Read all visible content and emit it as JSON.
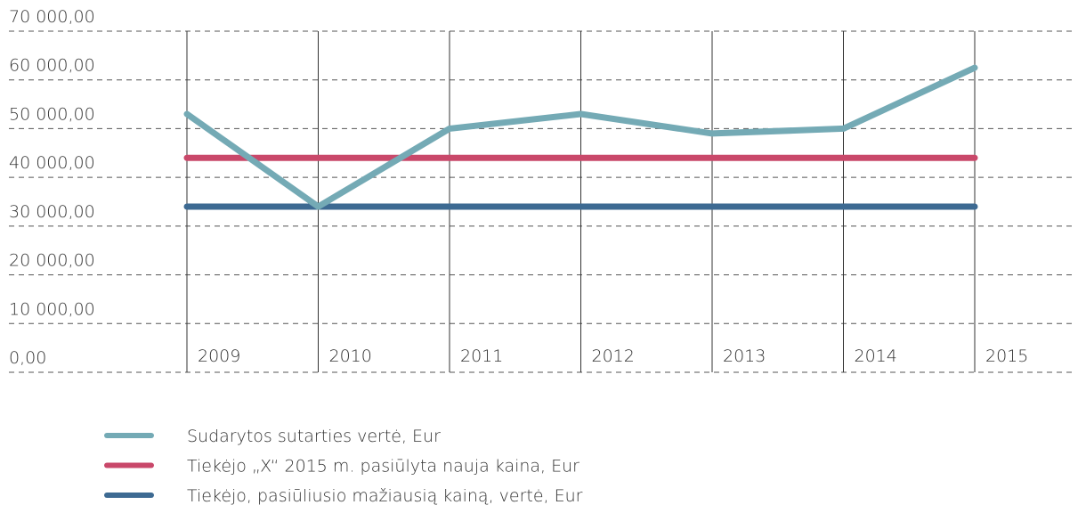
{
  "chart_data": {
    "type": "line",
    "categories": [
      "2009",
      "2010",
      "2011",
      "2012",
      "2013",
      "2014",
      "2015"
    ],
    "series": [
      {
        "name": "Sudarytos sutarties vertė, Eur",
        "color": "#74aab5",
        "values": [
          53000,
          34000,
          50000,
          53000,
          49000,
          50000,
          62500
        ]
      },
      {
        "name": "Tiekėjo „X“ 2015 m. pasiūlyta nauja kaina, Eur",
        "color": "#c9486a",
        "values": [
          44000,
          44000,
          44000,
          44000,
          44000,
          44000,
          44000
        ]
      },
      {
        "name": "Tiekėjo, pasiūliusio mažiausią kainą, vertė, Eur",
        "color": "#3d6a92",
        "values": [
          34000,
          34000,
          34000,
          34000,
          34000,
          34000,
          34000
        ]
      }
    ],
    "ylim": [
      0,
      70000
    ],
    "yticks": [
      {
        "value": 0,
        "label": "0,00"
      },
      {
        "value": 10000,
        "label": "10 000,00"
      },
      {
        "value": 20000,
        "label": "20 000,00"
      },
      {
        "value": 30000,
        "label": "30 000,00"
      },
      {
        "value": 40000,
        "label": "40 000,00"
      },
      {
        "value": 50000,
        "label": "50 000,00"
      },
      {
        "value": 60000,
        "label": "60 000,00"
      },
      {
        "value": 70000,
        "label": "70 000,00"
      }
    ],
    "grid": true
  }
}
